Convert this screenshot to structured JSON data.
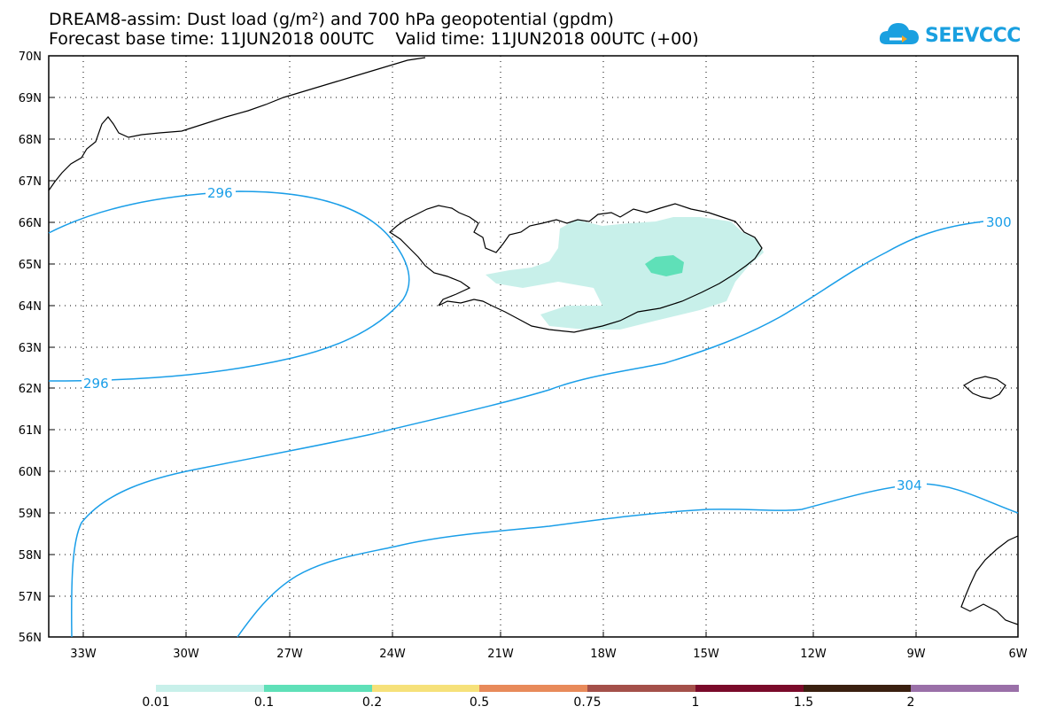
{
  "title": {
    "line1": "DREAM8-assim: Dust load (g/m²) and 700 hPa geopotential (gpdm)",
    "line2": "Forecast base time: 11JUN2018 00UTC    Valid time: 11JUN2018 00UTC (+00)"
  },
  "logo": {
    "text": "SEEVCCC",
    "icon": "cloud-icon"
  },
  "map": {
    "lat_ticks": [
      "70N",
      "69N",
      "68N",
      "67N",
      "66N",
      "65N",
      "64N",
      "63N",
      "62N",
      "61N",
      "60N",
      "59N",
      "58N",
      "57N",
      "56N"
    ],
    "lon_ticks": [
      "33W",
      "30W",
      "27W",
      "24W",
      "21W",
      "18W",
      "15W",
      "12W",
      "9W",
      "6W"
    ],
    "contour_labels": [
      "296",
      "296",
      "300",
      "304"
    ],
    "colors": {
      "contour": "#1a9ee8",
      "coast": "#000000",
      "frame": "#000000"
    }
  },
  "legend": {
    "thresholds": [
      "0.01",
      "0.1",
      "0.2",
      "0.5",
      "0.75",
      "1",
      "1.5",
      "2"
    ],
    "colors": [
      "#c8f0ea",
      "#5fe0b8",
      "#f6e17a",
      "#e88a5a",
      "#a4504a",
      "#7a0a2a",
      "#3a2010",
      "#9a70a8"
    ]
  }
}
